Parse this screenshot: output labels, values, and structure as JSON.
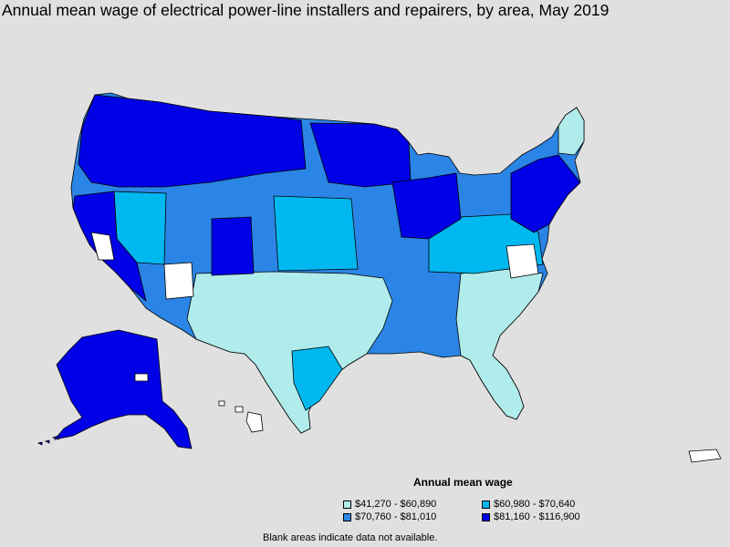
{
  "title": "Annual mean wage of electrical power-line installers and repairers, by area, May 2019",
  "legend": {
    "title": "Annual mean wage",
    "items": [
      {
        "label": "$41,270 - $60,890",
        "color": "#b0ecec"
      },
      {
        "label": "$60,980 - $70,640",
        "color": "#00b8f0"
      },
      {
        "label": "$70,760 - $81,010",
        "color": "#2b85e6"
      },
      {
        "label": "$81,160 - $116,900",
        "color": "#0000e6"
      }
    ]
  },
  "note": "Blank areas indicate data not available.",
  "colors": {
    "background": "#e0e0e0",
    "border": "#000000",
    "no_data": "#ffffff"
  }
}
